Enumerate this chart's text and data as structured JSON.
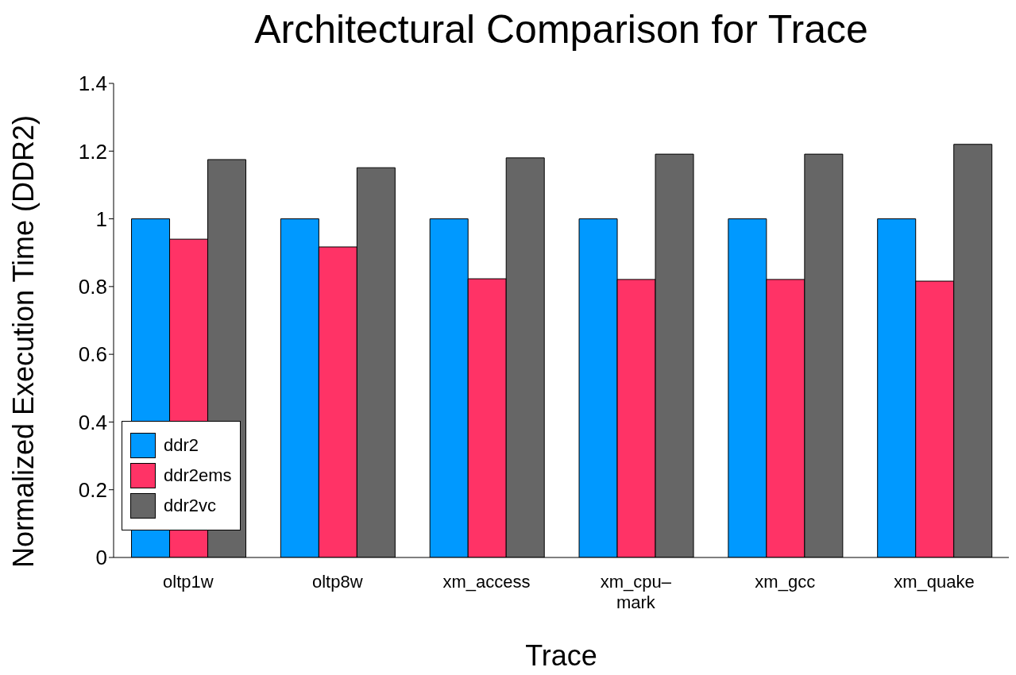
{
  "chart_data": {
    "type": "bar",
    "title": "Architectural Comparison for Trace",
    "xlabel": "Trace",
    "ylabel": "Normalized Execution Time (DDR2)",
    "categories": [
      "oltp1w",
      "oltp8w",
      "xm_access",
      "xm_cpu–mark",
      "xm_gcc",
      "xm_quake"
    ],
    "series": [
      {
        "name": "ddr2",
        "color": "#0099ff",
        "values": [
          1.0,
          1.0,
          1.0,
          1.0,
          1.0,
          1.0
        ]
      },
      {
        "name": "ddr2ems",
        "color": "#ff3366",
        "values": [
          0.94,
          0.917,
          0.823,
          0.821,
          0.821,
          0.816
        ]
      },
      {
        "name": "ddr2vc",
        "color": "#666666",
        "values": [
          1.175,
          1.151,
          1.18,
          1.191,
          1.191,
          1.22
        ]
      }
    ],
    "ylim": [
      0,
      1.4
    ],
    "yticks": [
      0,
      0.2,
      0.4,
      0.6,
      0.8,
      1,
      1.2,
      1.4
    ],
    "grid": false,
    "legend": "bottom left"
  }
}
